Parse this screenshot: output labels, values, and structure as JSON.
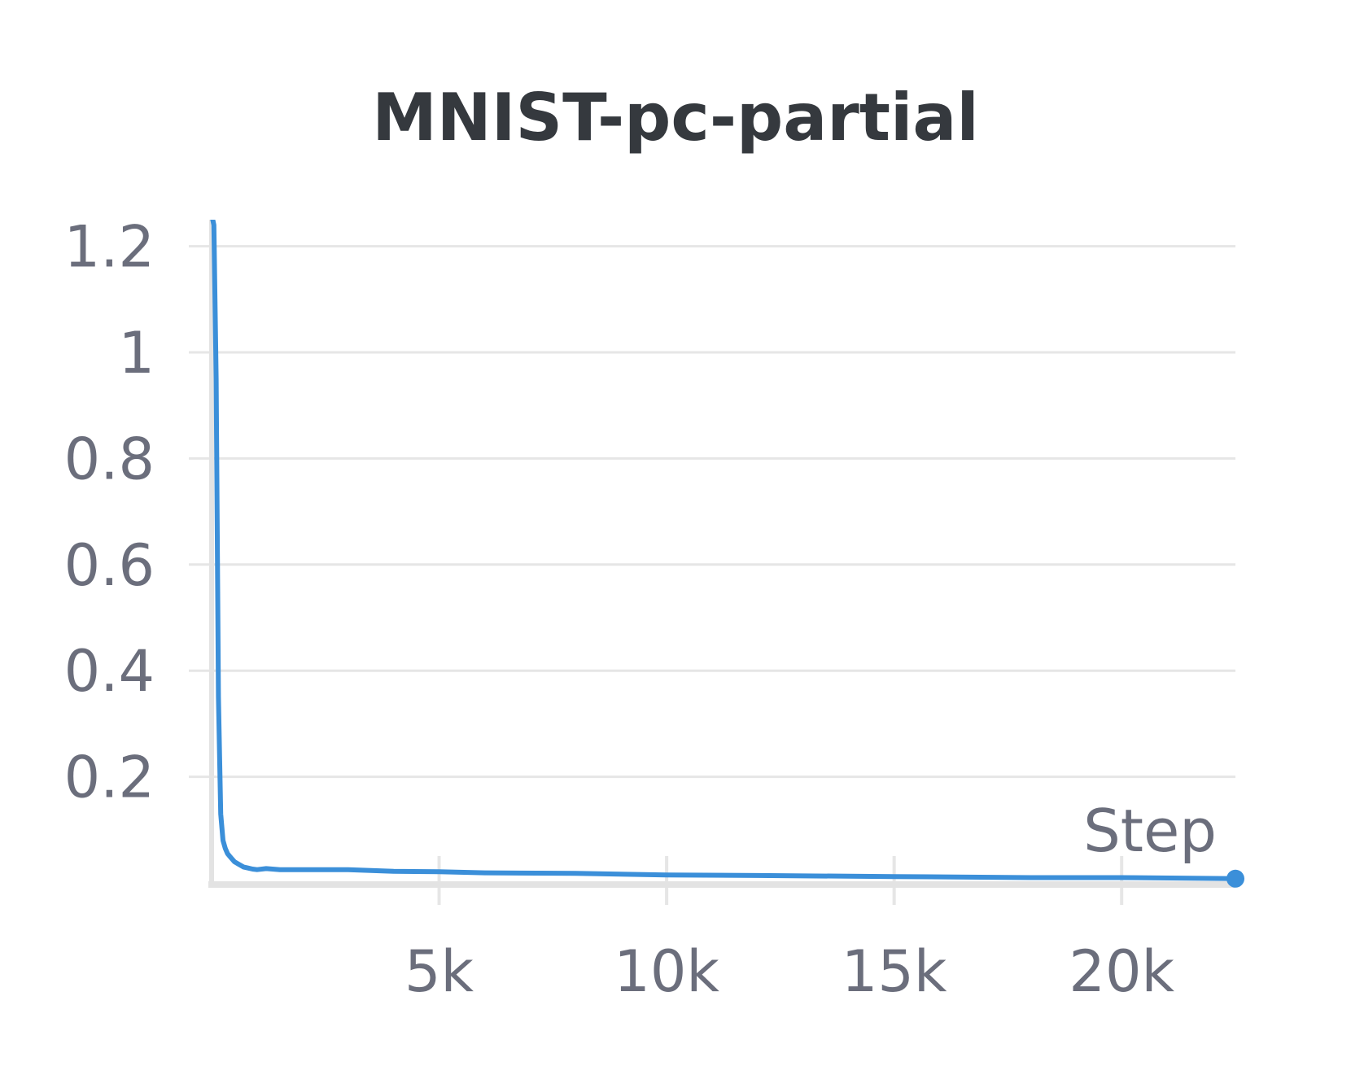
{
  "chart_data": {
    "type": "line",
    "title": "MNIST-pc-partial",
    "xlabel": "Step",
    "ylabel": "",
    "xlim": [
      0,
      22500
    ],
    "ylim": [
      0,
      1.25
    ],
    "x_ticks": [
      5000,
      10000,
      15000,
      20000
    ],
    "x_tick_labels": [
      "5k",
      "10k",
      "15k",
      "20k"
    ],
    "y_ticks": [
      0.2,
      0.4,
      0.6,
      0.8,
      1.0,
      1.2
    ],
    "y_tick_labels": [
      "0.2",
      "0.4",
      "0.6",
      "0.8",
      "1",
      "1.2"
    ],
    "grid": true,
    "legend": "none",
    "colors": {
      "series": "#3b8fd9",
      "grid": "#e6e6e6",
      "axis": "#e3e3e3",
      "title": "#35393e",
      "ticks": "#6b6e7c"
    },
    "series": [
      {
        "x": [
          0,
          50,
          100,
          150,
          200,
          250,
          300,
          350,
          400,
          450,
          500,
          600,
          700,
          800,
          900,
          1000,
          1200,
          1500,
          2000,
          3000,
          4000,
          5000,
          6000,
          8000,
          10000,
          12000,
          15000,
          18000,
          20000,
          22500
        ],
        "values": [
          1.26,
          1.24,
          0.95,
          0.35,
          0.13,
          0.08,
          0.065,
          0.055,
          0.05,
          0.045,
          0.04,
          0.035,
          0.03,
          0.028,
          0.026,
          0.025,
          0.027,
          0.025,
          0.025,
          0.025,
          0.022,
          0.021,
          0.019,
          0.018,
          0.015,
          0.014,
          0.012,
          0.01,
          0.01,
          0.008
        ]
      }
    ]
  }
}
